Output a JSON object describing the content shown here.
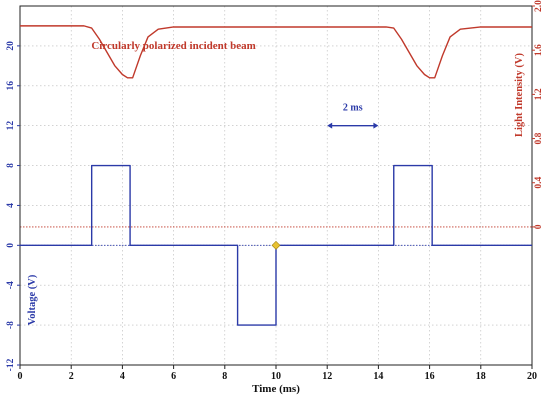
{
  "chart_data": {
    "type": "line",
    "xlabel": "Time (ms)",
    "ylabel_left": "Voltage (V)",
    "ylabel_right": "Light Intensity (V)",
    "x_ticks": [
      0,
      2,
      4,
      6,
      8,
      10,
      12,
      14,
      16,
      18,
      20
    ],
    "y_left_ticks": [
      -12,
      -8,
      -4,
      0,
      4,
      8,
      12,
      16,
      20
    ],
    "y_right_ticks": [
      0,
      0.4,
      0.8,
      1.2,
      1.6,
      2.0
    ],
    "y_right_tick_labels": [
      "0",
      "0.4",
      "0.8",
      "1.2",
      "1.6",
      "2.0"
    ],
    "xlim": [
      0,
      20
    ],
    "ylim_left": [
      -12,
      24
    ],
    "ylim_right": [
      -1.25,
      2.0
    ],
    "grid": true,
    "reference_lines": [
      {
        "axis": "left",
        "value": 0,
        "color": "#2b3aa8"
      },
      {
        "axis": "right",
        "value": 0,
        "color": "#c0392b"
      }
    ],
    "series": [
      {
        "axis": "left",
        "color": "#2b3aa8",
        "x": [
          0,
          2.8,
          2.8,
          4.3,
          4.3,
          8.5,
          8.5,
          10.0,
          10.0,
          14.6,
          14.6,
          16.1,
          16.1,
          20
        ],
        "y": [
          0,
          0,
          8,
          8,
          0,
          0,
          -8,
          -8,
          0,
          0,
          8,
          8,
          0,
          0
        ]
      },
      {
        "axis": "right",
        "color": "#c0392b",
        "x": [
          0,
          2.5,
          2.8,
          3.1,
          3.4,
          3.7,
          4.0,
          4.2,
          4.4,
          4.7,
          5.0,
          5.4,
          6.0,
          10,
          14.3,
          14.6,
          14.9,
          15.2,
          15.5,
          15.8,
          16.0,
          16.2,
          16.5,
          16.8,
          17.2,
          18.0,
          20
        ],
        "y": [
          1.82,
          1.82,
          1.8,
          1.7,
          1.58,
          1.46,
          1.38,
          1.35,
          1.35,
          1.55,
          1.72,
          1.79,
          1.81,
          1.81,
          1.81,
          1.8,
          1.7,
          1.58,
          1.46,
          1.38,
          1.35,
          1.35,
          1.55,
          1.72,
          1.79,
          1.81,
          1.81
        ]
      }
    ],
    "annotations": [
      {
        "text": "Circularly polarized incident beam",
        "x": 6.0,
        "y_right": 1.61,
        "color": "#c0392b"
      },
      {
        "text": "2 ms",
        "x": 13.0,
        "y_left": 13.5,
        "color": "#2b3aa8"
      }
    ],
    "scale_bar": {
      "x0": 12.0,
      "x1": 14.0,
      "y_left": 12.0,
      "color": "#2b3aa8"
    },
    "marker": {
      "x": 10.0,
      "y_left": 0,
      "color": "#e8c232"
    }
  }
}
